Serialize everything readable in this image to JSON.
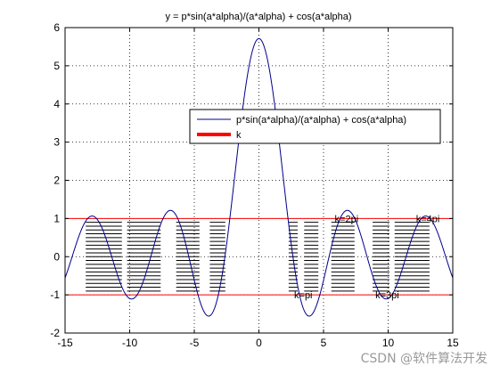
{
  "chart_data": {
    "type": "line",
    "title": "y = p*sin(a*alpha)/(a*alpha) + cos(a*alpha)",
    "xlim": [
      -15,
      15
    ],
    "ylim": [
      -2,
      6
    ],
    "xticks": [
      -15,
      -10,
      -5,
      0,
      5,
      10,
      15
    ],
    "yticks": [
      -2,
      -1,
      0,
      1,
      2,
      3,
      4,
      5,
      6
    ],
    "xtick_labels": [
      "-15",
      "-10",
      "-5",
      "0",
      "5",
      "10",
      "15"
    ],
    "ytick_labels": [
      "-2",
      "-1",
      "0",
      "1",
      "2",
      "3",
      "4",
      "5",
      "6"
    ],
    "grid": true,
    "grid_style": "dotted",
    "legend_position": "center-right",
    "series": [
      {
        "name": "p*sin(a*alpha)/(a*alpha) + cos(a*alpha)",
        "color": "#00008b",
        "function": {
          "p": 4.712,
          "a": 1
        },
        "x_range": [
          -15,
          15
        ]
      },
      {
        "name": "k",
        "color": "#ff0000",
        "style": "horizontal-lines",
        "values": [
          1,
          -1
        ]
      }
    ],
    "bands": {
      "color": "#000000",
      "y_range": [
        -0.9,
        0.9
      ],
      "y_step": 0.1,
      "x_intervals": [
        [
          -13.4,
          -10.6
        ],
        [
          -10.2,
          -7.6
        ],
        [
          -6.4,
          -4.6
        ],
        [
          -3.8,
          -2.6
        ],
        [
          2.3,
          3.0
        ],
        [
          3.5,
          4.6
        ],
        [
          5.6,
          7.4
        ],
        [
          8.8,
          10.1
        ],
        [
          10.5,
          13.2
        ]
      ]
    },
    "annotations": [
      {
        "text": "k=pi",
        "x": 3.14,
        "y": -1
      },
      {
        "text": "k=2pi",
        "x": 6.28,
        "y": 1
      },
      {
        "text": "k=3pi",
        "x": 9.42,
        "y": -1
      },
      {
        "text": "k=4pi",
        "x": 12.57,
        "y": 1
      }
    ]
  },
  "watermark": "CSDN @软件算法开发"
}
